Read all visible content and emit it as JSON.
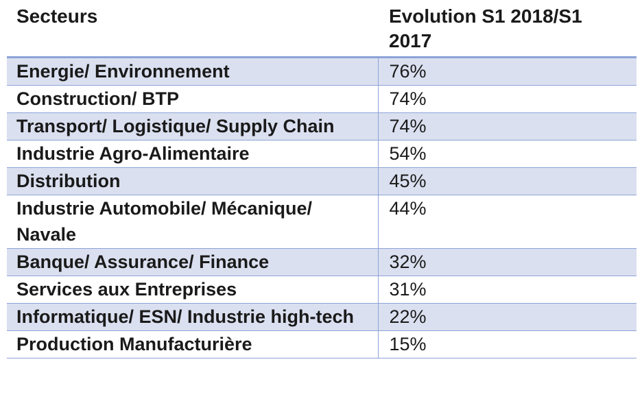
{
  "chart_data": {
    "type": "table",
    "columns": [
      "Secteurs",
      "Evolution S1 2018/S1 2017"
    ],
    "rows": [
      {
        "sector": "Energie/ Environnement",
        "value": "76%"
      },
      {
        "sector": "Construction/ BTP",
        "value": "74%"
      },
      {
        "sector": "Transport/ Logistique/ Supply Chain",
        "value": "74%"
      },
      {
        "sector": "Industrie Agro-Alimentaire",
        "value": "54%"
      },
      {
        "sector": "Distribution",
        "value": "45%"
      },
      {
        "sector": "Industrie Automobile/ Mécanique/ Navale",
        "value": "44%"
      },
      {
        "sector": "Banque/ Assurance/ Finance",
        "value": "32%"
      },
      {
        "sector": "Services aux Entreprises",
        "value": "31%"
      },
      {
        "sector": "Informatique/ ESN/ Industrie high-tech",
        "value": "22%"
      },
      {
        "sector": "Production Manufacturière",
        "value": "15%"
      }
    ]
  },
  "colors": {
    "row_shade": "#dbe0f0",
    "border": "#8da2d7"
  }
}
